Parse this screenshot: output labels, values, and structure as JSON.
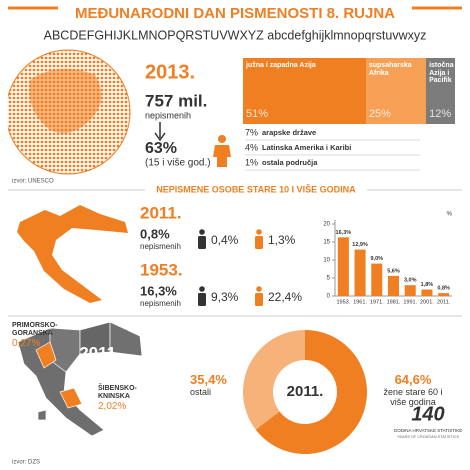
{
  "header": {
    "title": "MEĐUNARODNI DAN PISMENOSTI 8. RUJNA",
    "alphabet": "ABCDEFGHIJKLMNOPQRSTUVWXYZ abcdefghijklmnopqrstuvwxyz"
  },
  "world": {
    "year": "2013.",
    "count": "757 mil.",
    "count_label": "nepismenih",
    "share": "63%",
    "share_note": "(15 i više god.)",
    "other_regions": [
      {
        "pct": "7%",
        "name": "arapske države"
      },
      {
        "pct": "4%",
        "name": "Latinska Amerika i Karibi"
      },
      {
        "pct": "1%",
        "name": "ostala područja"
      }
    ],
    "source": "izvor: UNESCO"
  },
  "croatia": {
    "title": "NEPISMENE OSOBE STARE 10 I VIŠE GODINA",
    "rows": [
      {
        "year": "2011.",
        "total": "0,8%",
        "total_label": "nepismenih",
        "male": "0,4%",
        "female": "1,3%"
      },
      {
        "year": "1953.",
        "total": "16,3%",
        "total_label": "nepismenih",
        "male": "9,3%",
        "female": "22,4%"
      }
    ]
  },
  "counties": {
    "year": "2011.",
    "items": [
      {
        "name": "PRIMORSKO-GORANSKA",
        "value": "0,27%"
      },
      {
        "name": "ŠIBENSKO-KNINSKA",
        "value": "2,02%"
      }
    ],
    "source": "izvor: DZS"
  },
  "logo": {
    "number": "140",
    "line1": "GODINA HRVATSKE STATISTIKE",
    "line2": "YEARS OF CROATIAN STATISTICS"
  },
  "chart_data": [
    {
      "type": "stacked_bar",
      "categories": [
        "južna i zapadna Azija",
        "supsaharska Afrika",
        "istočna Azija i Pacifik"
      ],
      "values": [
        51,
        25,
        12
      ],
      "value_labels": [
        "51%",
        "25%",
        "12%"
      ],
      "colors": [
        "#f07f22",
        "#f5a054",
        "#7b7b7b"
      ]
    },
    {
      "type": "bar",
      "categories": [
        "1953.",
        "1961.",
        "1971.",
        "1981.",
        "1991.",
        "2001.",
        "2011."
      ],
      "values": [
        16.3,
        12.9,
        9.0,
        5.6,
        3.0,
        1.8,
        0.8
      ],
      "value_labels": [
        "16,3%",
        "12,9%",
        "9,0%",
        "5,6%",
        "3,0%",
        "1,8%",
        "0,8%"
      ],
      "color": "#f07f22",
      "ylim": [
        0,
        20
      ],
      "yticks": [
        0,
        5,
        10,
        15,
        20
      ],
      "y_unit": "%"
    },
    {
      "type": "pie",
      "categories": [
        "ostali",
        "žene stare 60 i više godina"
      ],
      "values": [
        35.4,
        64.6
      ],
      "value_labels": [
        "35,4%",
        "64,6%"
      ],
      "colors": [
        "#f7b27a",
        "#f07f22"
      ],
      "center_label": "2011."
    }
  ]
}
